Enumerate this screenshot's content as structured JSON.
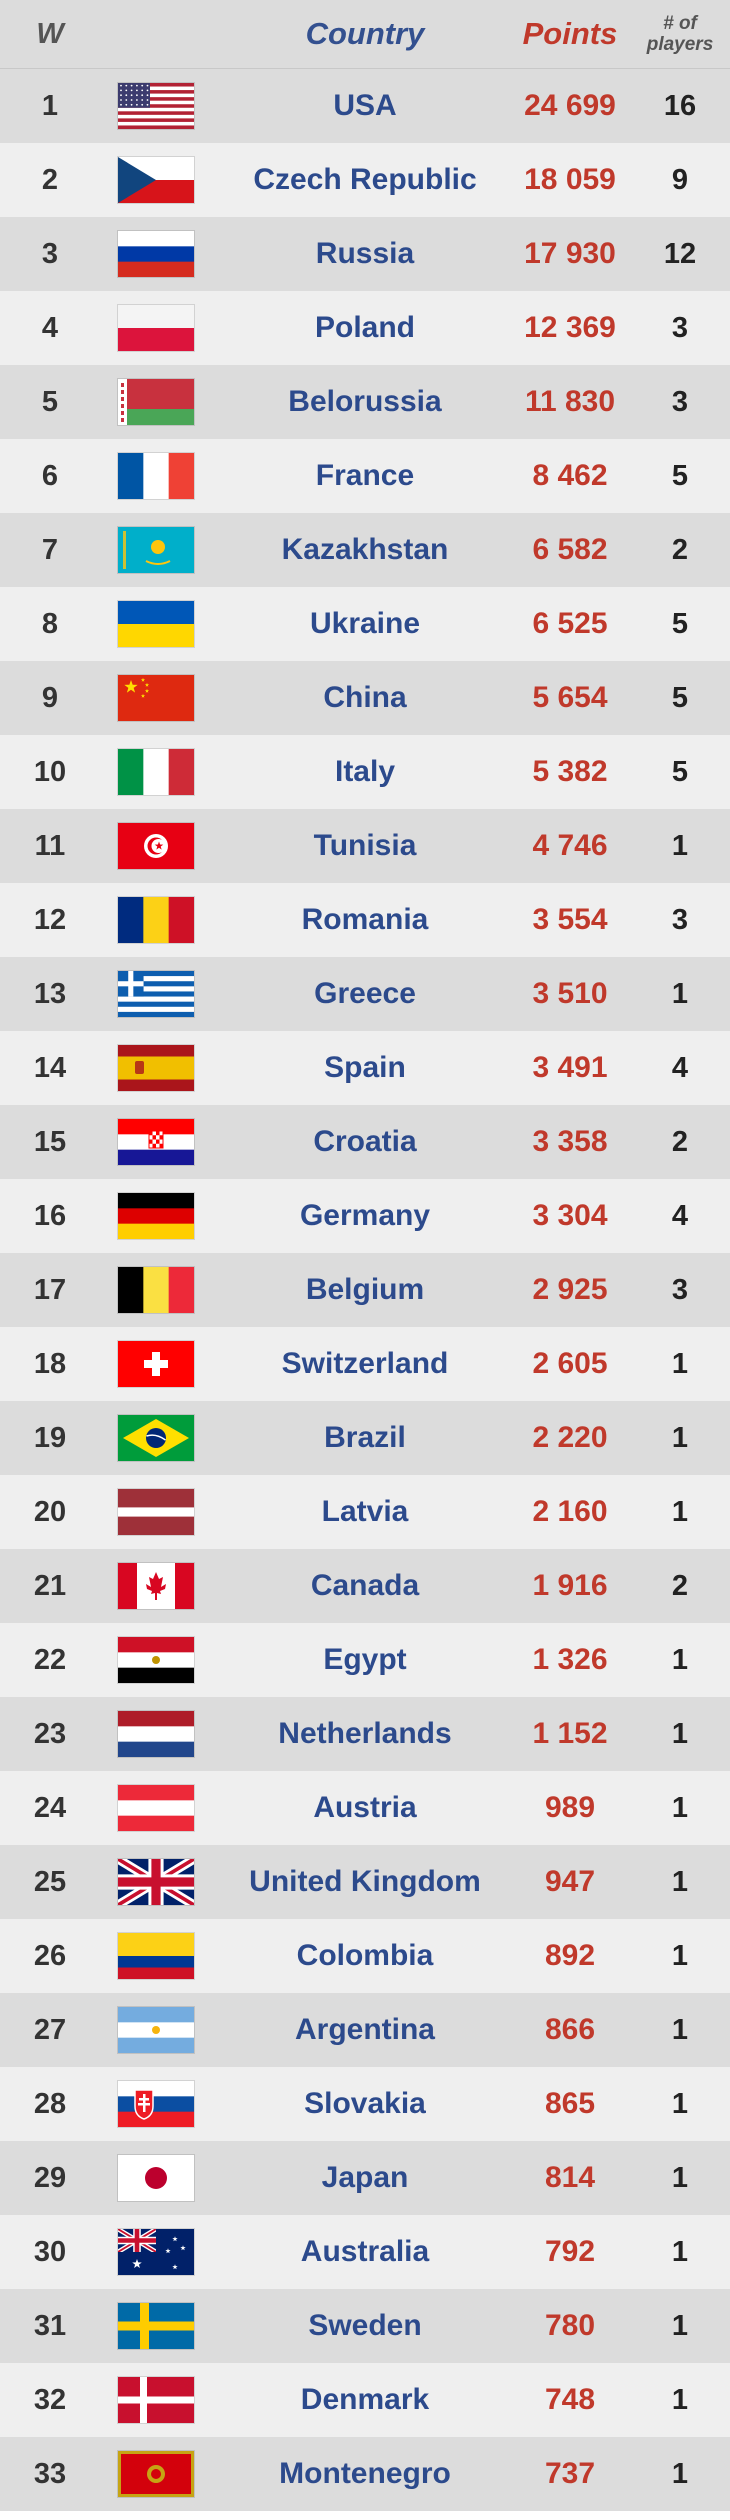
{
  "header": {
    "rank": "W",
    "country": "Country",
    "points": "Points",
    "players_line1": "# of",
    "players_line2": "players"
  },
  "rows": [
    {
      "rank": "1",
      "country": "USA",
      "points": "24 699",
      "players": "16",
      "flag": "usa-flag-icon"
    },
    {
      "rank": "2",
      "country": "Czech Republic",
      "points": "18 059",
      "players": "9",
      "flag": "czech-flag-icon"
    },
    {
      "rank": "3",
      "country": "Russia",
      "points": "17 930",
      "players": "12",
      "flag": "russia-flag-icon"
    },
    {
      "rank": "4",
      "country": "Poland",
      "points": "12 369",
      "players": "3",
      "flag": "poland-flag-icon"
    },
    {
      "rank": "5",
      "country": "Belorussia",
      "points": "11 830",
      "players": "3",
      "flag": "belarus-flag-icon"
    },
    {
      "rank": "6",
      "country": "France",
      "points": "8 462",
      "players": "5",
      "flag": "france-flag-icon"
    },
    {
      "rank": "7",
      "country": "Kazakhstan",
      "points": "6 582",
      "players": "2",
      "flag": "kazakhstan-flag-icon"
    },
    {
      "rank": "8",
      "country": "Ukraine",
      "points": "6 525",
      "players": "5",
      "flag": "ukraine-flag-icon"
    },
    {
      "rank": "9",
      "country": "China",
      "points": "5 654",
      "players": "5",
      "flag": "china-flag-icon"
    },
    {
      "rank": "10",
      "country": "Italy",
      "points": "5 382",
      "players": "5",
      "flag": "italy-flag-icon"
    },
    {
      "rank": "11",
      "country": "Tunisia",
      "points": "4 746",
      "players": "1",
      "flag": "tunisia-flag-icon"
    },
    {
      "rank": "12",
      "country": "Romania",
      "points": "3 554",
      "players": "3",
      "flag": "romania-flag-icon"
    },
    {
      "rank": "13",
      "country": "Greece",
      "points": "3 510",
      "players": "1",
      "flag": "greece-flag-icon"
    },
    {
      "rank": "14",
      "country": "Spain",
      "points": "3 491",
      "players": "4",
      "flag": "spain-flag-icon"
    },
    {
      "rank": "15",
      "country": "Croatia",
      "points": "3 358",
      "players": "2",
      "flag": "croatia-flag-icon"
    },
    {
      "rank": "16",
      "country": "Germany",
      "points": "3 304",
      "players": "4",
      "flag": "germany-flag-icon"
    },
    {
      "rank": "17",
      "country": "Belgium",
      "points": "2 925",
      "players": "3",
      "flag": "belgium-flag-icon"
    },
    {
      "rank": "18",
      "country": "Switzerland",
      "points": "2 605",
      "players": "1",
      "flag": "switzerland-flag-icon"
    },
    {
      "rank": "19",
      "country": "Brazil",
      "points": "2 220",
      "players": "1",
      "flag": "brazil-flag-icon"
    },
    {
      "rank": "20",
      "country": "Latvia",
      "points": "2 160",
      "players": "1",
      "flag": "latvia-flag-icon"
    },
    {
      "rank": "21",
      "country": "Canada",
      "points": "1 916",
      "players": "2",
      "flag": "canada-flag-icon"
    },
    {
      "rank": "22",
      "country": "Egypt",
      "points": "1 326",
      "players": "1",
      "flag": "egypt-flag-icon"
    },
    {
      "rank": "23",
      "country": "Netherlands",
      "points": "1 152",
      "players": "1",
      "flag": "netherlands-flag-icon"
    },
    {
      "rank": "24",
      "country": "Austria",
      "points": "989",
      "players": "1",
      "flag": "austria-flag-icon"
    },
    {
      "rank": "25",
      "country": "United Kingdom",
      "points": "947",
      "players": "1",
      "flag": "uk-flag-icon"
    },
    {
      "rank": "26",
      "country": "Colombia",
      "points": "892",
      "players": "1",
      "flag": "colombia-flag-icon"
    },
    {
      "rank": "27",
      "country": "Argentina",
      "points": "866",
      "players": "1",
      "flag": "argentina-flag-icon"
    },
    {
      "rank": "28",
      "country": "Slovakia",
      "points": "865",
      "players": "1",
      "flag": "slovakia-flag-icon"
    },
    {
      "rank": "29",
      "country": "Japan",
      "points": "814",
      "players": "1",
      "flag": "japan-flag-icon"
    },
    {
      "rank": "30",
      "country": "Australia",
      "points": "792",
      "players": "1",
      "flag": "australia-flag-icon"
    },
    {
      "rank": "31",
      "country": "Sweden",
      "points": "780",
      "players": "1",
      "flag": "sweden-flag-icon"
    },
    {
      "rank": "32",
      "country": "Denmark",
      "points": "748",
      "players": "1",
      "flag": "denmark-flag-icon"
    },
    {
      "rank": "33",
      "country": "Montenegro",
      "points": "737",
      "players": "1",
      "flag": "montenegro-flag-icon"
    }
  ]
}
